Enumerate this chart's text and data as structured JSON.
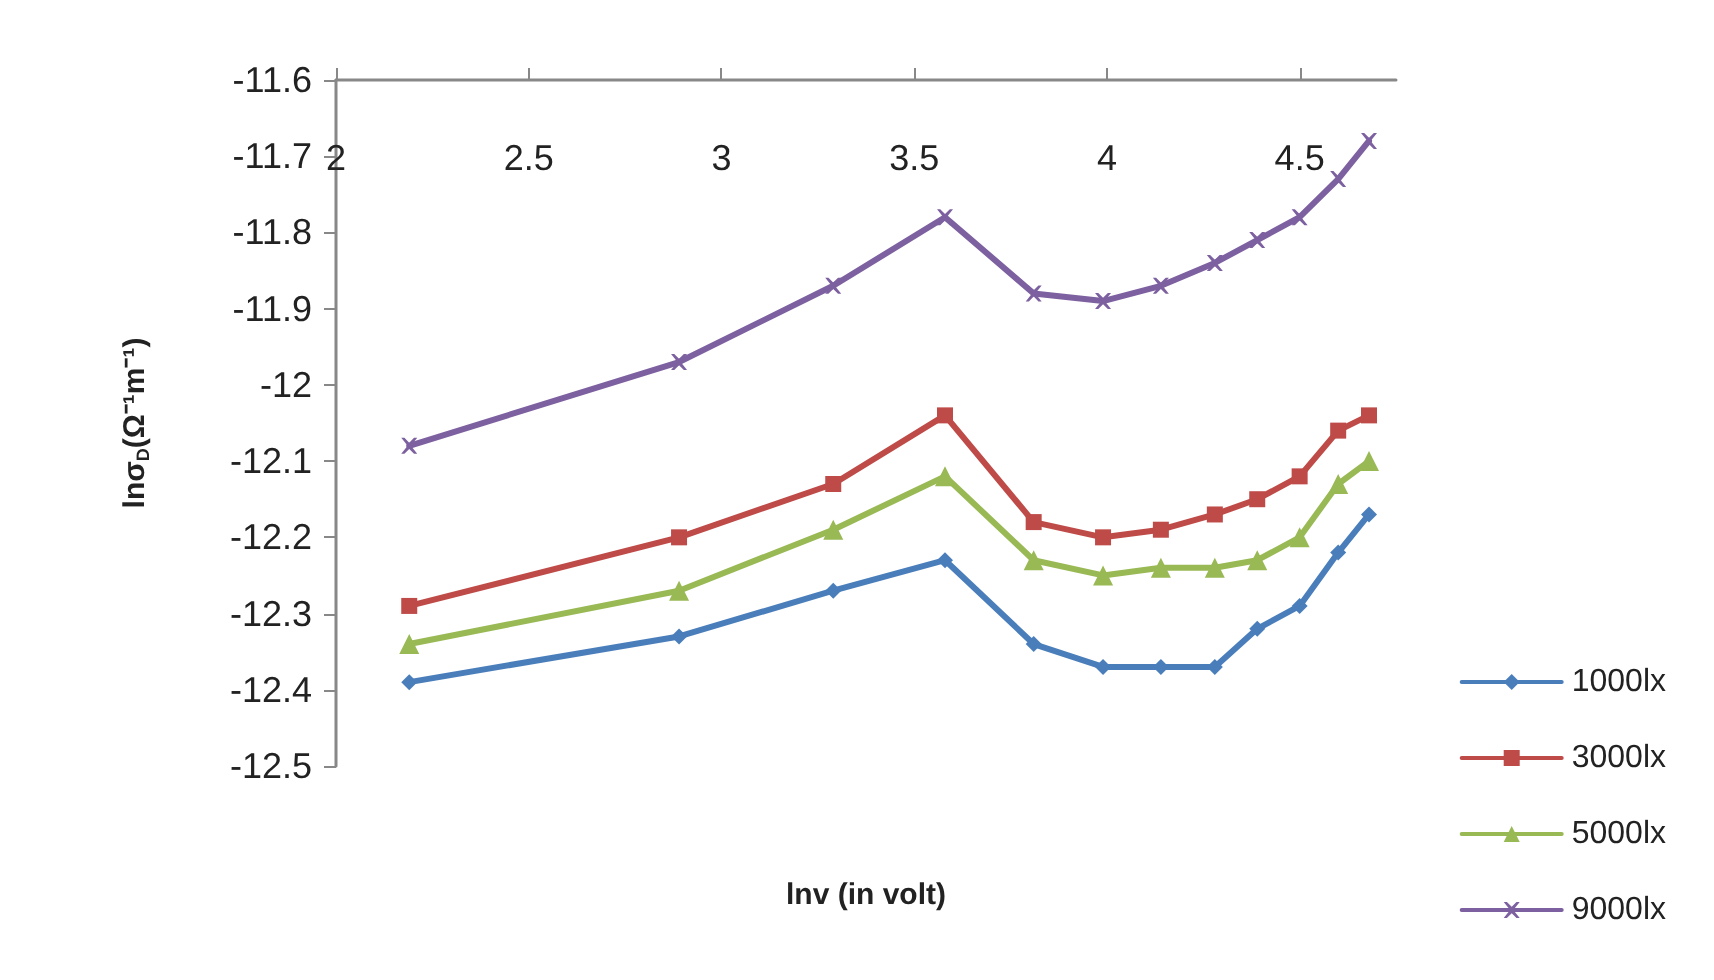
{
  "chart_data": {
    "type": "line",
    "xlabel": "lnv (in volt)",
    "ylabel": "lnσ$_{D}$(Ω⁻¹m⁻¹)",
    "x": [
      2.19,
      2.89,
      3.29,
      3.58,
      3.81,
      3.99,
      4.14,
      4.28,
      4.39,
      4.5,
      4.6,
      4.68
    ],
    "xlim": [
      2,
      4.75
    ],
    "xticks": [
      2,
      2.5,
      3,
      3.5,
      4,
      4.5
    ],
    "ylim": [
      -12.5,
      -11.6
    ],
    "yticks": [
      -12.5,
      -12.4,
      -12.3,
      -12.2,
      -12.1,
      -12,
      -11.9,
      -11.8,
      -11.7,
      -11.6
    ],
    "grid": false,
    "legend": "right",
    "line_style": "solid",
    "series": [
      {
        "name": "1000lx",
        "color": "#4a7ebb",
        "marker": "diamond",
        "values": [
          -12.39,
          -12.33,
          -12.27,
          -12.23,
          -12.34,
          -12.37,
          -12.37,
          -12.37,
          -12.32,
          -12.29,
          -12.22,
          -12.17
        ]
      },
      {
        "name": "3000lx",
        "color": "#be4b48",
        "marker": "square",
        "values": [
          -12.29,
          -12.2,
          -12.13,
          -12.04,
          -12.18,
          -12.2,
          -12.19,
          -12.17,
          -12.15,
          -12.12,
          -12.06,
          -12.04
        ]
      },
      {
        "name": "5000lx",
        "color": "#98b954",
        "marker": "triangle",
        "values": [
          -12.34,
          -12.27,
          -12.19,
          -12.12,
          -12.23,
          -12.25,
          -12.24,
          -12.24,
          -12.23,
          -12.2,
          -12.13,
          -12.1
        ]
      },
      {
        "name": "9000lx",
        "color": "#7d60a0",
        "marker": "cross",
        "values": [
          -12.08,
          -11.97,
          -11.87,
          -11.78,
          -11.88,
          -11.89,
          -11.87,
          -11.84,
          -11.81,
          -11.78,
          -11.73,
          -11.68
        ]
      }
    ]
  }
}
